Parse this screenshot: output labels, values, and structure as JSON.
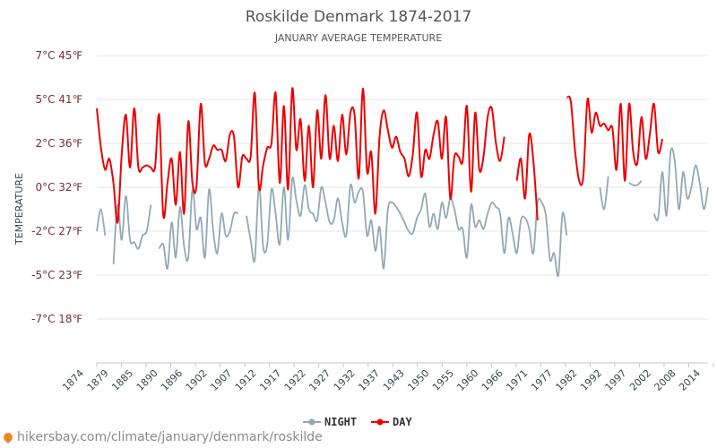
{
  "chart_data": {
    "type": "line",
    "title": "Roskilde Denmark 1874-2017",
    "subtitle": "JANUARY AVERAGE TEMPERATURE",
    "ylabel": "TEMPERATURE",
    "xlabel": "",
    "ylim": [
      -7,
      7
    ],
    "y_ticks": [
      {
        "value": 7,
        "label": "7°C 45℉"
      },
      {
        "value": 5,
        "label": "5°C 41℉"
      },
      {
        "value": 3,
        "label": "2°C 36℉"
      },
      {
        "value": 1,
        "label": "0°C 32℉"
      },
      {
        "value": -1,
        "label": "-2°C 27℉"
      },
      {
        "value": -3,
        "label": "-5°C 23℉"
      },
      {
        "value": -5,
        "label": "-7°C 18℉"
      }
    ],
    "x_tick_labels": [
      "1874",
      "1879",
      "1885",
      "1890",
      "1896",
      "1902",
      "1907",
      "1912",
      "1917",
      "1922",
      "1927",
      "1932",
      "1937",
      "1943",
      "1950",
      "1955",
      "1960",
      "1966",
      "1971",
      "1977",
      "1982",
      "1992",
      "1997",
      "2002",
      "2008",
      "2014"
    ],
    "x_start": 1874,
    "x_end": 2017,
    "grid": true,
    "legend_position": "bottom-center",
    "series": [
      {
        "name": "NIGHT",
        "color": "#90aab3",
        "values": [
          -1.0,
          0.0,
          -1.2,
          null,
          -2.5,
          0.2,
          -1.4,
          0.6,
          -1.4,
          -1.5,
          -1.8,
          -1.2,
          -1.0,
          0.2,
          null,
          -1.8,
          -1.6,
          -2.7,
          -0.6,
          -2.2,
          0.1,
          -1.7,
          -2.2,
          0.9,
          -0.9,
          -0.4,
          -2.2,
          0.9,
          -1.0,
          -2.0,
          -0.2,
          -1.2,
          -1.0,
          -0.2,
          -0.2,
          null,
          -0.3,
          -1.4,
          -2.3,
          1.1,
          -1.7,
          -1.6,
          0.9,
          -0.2,
          -1.6,
          1.0,
          -1.4,
          1.4,
          0.4,
          -0.3,
          1.1,
          0.0,
          -0.2,
          -0.5,
          1.0,
          0.3,
          -0.6,
          -0.5,
          0.5,
          -0.6,
          -1.2,
          1.1,
          0.3,
          0.8,
          0.8,
          -1.2,
          -0.5,
          -1.9,
          -0.8,
          -2.7,
          0.0,
          0.3,
          0.1,
          -0.2,
          -0.6,
          -1.0,
          -1.1,
          -0.4,
          0.0,
          0.7,
          -0.8,
          -0.2,
          -0.9,
          0.3,
          -0.4,
          0.5,
          0.0,
          -0.9,
          -0.9,
          -2.2,
          0.2,
          -0.8,
          -0.5,
          -0.9,
          -0.2,
          0.3,
          0.1,
          -0.2,
          -2.0,
          -0.4,
          -1.1,
          -2.0,
          -0.5,
          -0.4,
          -0.9,
          -2.0,
          0.3,
          0.3,
          -0.3,
          -2.3,
          -2.0,
          -3.0,
          -0.2,
          -1.2,
          null,
          null,
          null,
          null,
          null,
          null,
          null,
          1.0,
          0.0,
          1.5,
          null,
          null,
          null,
          null,
          1.2,
          1.1,
          1.1,
          1.3,
          null,
          null,
          -0.2,
          -0.4,
          1.7,
          -0.3,
          2.6,
          2.2,
          0.0,
          1.7,
          0.5,
          1.0,
          2.0,
          1.2,
          0.0,
          1.0
        ]
      },
      {
        "name": "DAY",
        "color": "#ee0000",
        "values": [
          4.6,
          2.8,
          1.8,
          2.3,
          1.2,
          -0.6,
          2.5,
          4.3,
          1.9,
          4.6,
          1.9,
          1.9,
          2.0,
          1.9,
          1.9,
          4.3,
          -0.3,
          1.2,
          2.3,
          0.2,
          2.6,
          -0.2,
          4.0,
          1.2,
          1.1,
          4.8,
          2.1,
          2.3,
          2.9,
          2.7,
          2.7,
          2.2,
          3.4,
          3.3,
          1.0,
          2.4,
          2.3,
          2.4,
          5.3,
          1.0,
          2.0,
          2.8,
          3.0,
          5.3,
          1.2,
          4.7,
          0.9,
          5.5,
          2.7,
          4.1,
          1.3,
          3.8,
          1.0,
          4.5,
          2.3,
          5.2,
          2.3,
          3.8,
          2.2,
          4.3,
          2.5,
          4.4,
          4.3,
          1.4,
          5.5,
          1.7,
          2.6,
          -0.2,
          3.3,
          4.5,
          3.6,
          2.8,
          3.3,
          2.6,
          2.3,
          1.5,
          2.5,
          4.4,
          1.5,
          2.7,
          2.3,
          3.4,
          4.0,
          2.3,
          4.2,
          0.5,
          2.4,
          2.4,
          2.2,
          4.7,
          0.8,
          4.4,
          1.8,
          2.4,
          4.2,
          4.6,
          3.0,
          2.2,
          3.3,
          null,
          null,
          1.3,
          2.3,
          0.5,
          3.4,
          2.2,
          -0.5,
          null,
          null,
          null,
          null,
          null,
          null,
          5.1,
          4.9,
          2.7,
          1.3,
          1.5,
          5.0,
          3.5,
          4.4,
          3.8,
          3.9,
          3.6,
          3.7,
          1.8,
          4.8,
          1.3,
          4.8,
          2.6,
          2.1,
          4.2,
          2.3,
          3.4,
          4.8,
          2.6,
          3.2
        ]
      }
    ]
  },
  "legend": {
    "night_label": "NIGHT",
    "day_label": "DAY"
  },
  "source_text": "hikersbay.com/climate/january/denmark/roskilde"
}
